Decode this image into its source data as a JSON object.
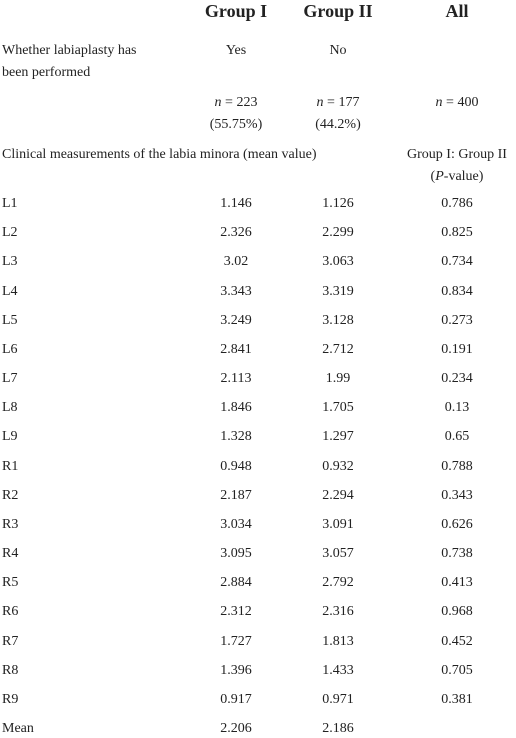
{
  "header": [
    "Group I",
    "Group II",
    "All"
  ],
  "labiaplasty": {
    "label": [
      "Whether labiaplasty has",
      "been performed"
    ],
    "values": [
      "Yes",
      "No"
    ]
  },
  "n_row": [
    {
      "var": "n",
      "rest": "= 223",
      "pct": "(55.75%)"
    },
    {
      "var": "n",
      "rest": "= 177",
      "pct": "(44.2%)"
    },
    {
      "var": "n",
      "rest": "= 400"
    }
  ],
  "section": {
    "label": "Clinical measurements of the labia minora (mean value)",
    "p_line1": "Group I: Group II",
    "p_open": "(",
    "p_var": "P",
    "p_close": "-value)"
  },
  "rows": [
    {
      "label": "L1",
      "g1": 1.146,
      "g2": 1.126,
      "p": 0.786
    },
    {
      "label": "L2",
      "g1": 2.326,
      "g2": 2.299,
      "p": 0.825
    },
    {
      "label": "L3",
      "g1": 3.02,
      "g2": 3.063,
      "p": 0.734
    },
    {
      "label": "L4",
      "g1": 3.343,
      "g2": 3.319,
      "p": 0.834
    },
    {
      "label": "L5",
      "g1": 3.249,
      "g2": 3.128,
      "p": 0.273
    },
    {
      "label": "L6",
      "g1": 2.841,
      "g2": 2.712,
      "p": 0.191
    },
    {
      "label": "L7",
      "g1": 2.113,
      "g2": 1.99,
      "p": 0.234
    },
    {
      "label": "L8",
      "g1": 1.846,
      "g2": 1.705,
      "p": 0.13
    },
    {
      "label": "L9",
      "g1": 1.328,
      "g2": 1.297,
      "p": 0.65
    },
    {
      "label": "R1",
      "g1": 0.948,
      "g2": 0.932,
      "p": 0.788
    },
    {
      "label": "R2",
      "g1": 2.187,
      "g2": 2.294,
      "p": 0.343
    },
    {
      "label": "R3",
      "g1": 3.034,
      "g2": 3.091,
      "p": 0.626
    },
    {
      "label": "R4",
      "g1": 3.095,
      "g2": 3.057,
      "p": 0.738
    },
    {
      "label": "R5",
      "g1": 2.884,
      "g2": 2.792,
      "p": 0.413
    },
    {
      "label": "R6",
      "g1": 2.312,
      "g2": 2.316,
      "p": 0.968
    },
    {
      "label": "R7",
      "g1": 1.727,
      "g2": 1.813,
      "p": 0.452
    },
    {
      "label": "R8",
      "g1": 1.396,
      "g2": 1.433,
      "p": 0.705
    },
    {
      "label": "R9",
      "g1": 0.917,
      "g2": 0.971,
      "p": 0.381
    },
    {
      "label": "Mean",
      "g1": 2.206,
      "g2": 2.186
    }
  ]
}
